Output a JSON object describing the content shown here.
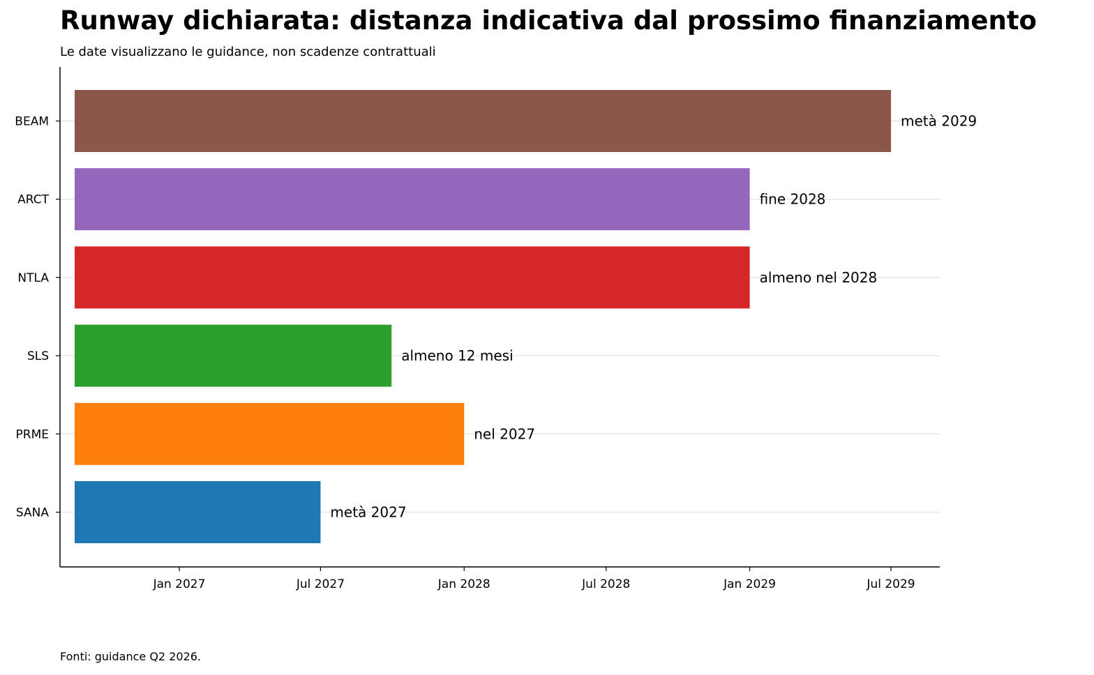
{
  "chart_data": {
    "type": "bar",
    "orientation": "horizontal",
    "title": "Runway dichiarata: distanza indicativa dal prossimo finanziamento",
    "subtitle": "Le date visualizzano le guidance, non scadenze contrattuali",
    "source": "Fonti: guidance Q2 2026.",
    "xlabel": "",
    "ylabel": "",
    "x_axis_type": "date",
    "xlim": [
      "2026-08-01",
      "2029-09-01"
    ],
    "x_ticks": [
      {
        "date": "2027-01-01",
        "label": "Jan 2027"
      },
      {
        "date": "2027-07-01",
        "label": "Jul 2027"
      },
      {
        "date": "2028-01-01",
        "label": "Jan 2028"
      },
      {
        "date": "2028-07-01",
        "label": "Jul 2028"
      },
      {
        "date": "2029-01-01",
        "label": "Jan 2029"
      },
      {
        "date": "2029-07-01",
        "label": "Jul 2029"
      }
    ],
    "bar_start": "2026-07-01",
    "categories": [
      "BEAM",
      "ARCT",
      "NTLA",
      "SLS",
      "PRME",
      "SANA"
    ],
    "values": [
      "2029-07-01",
      "2029-01-01",
      "2029-01-01",
      "2027-09-30",
      "2028-01-01",
      "2027-07-01"
    ],
    "labels": [
      "metà 2029",
      "fine 2028",
      "almeno nel 2028",
      "almeno 12 mesi",
      "nel 2027",
      "metà 2027"
    ],
    "colors": [
      "#8c564b",
      "#9467bd",
      "#d62728",
      "#2ca02c",
      "#ff7f0e",
      "#1f77b4"
    ],
    "grid": "horizontal, light",
    "legend": "none"
  }
}
